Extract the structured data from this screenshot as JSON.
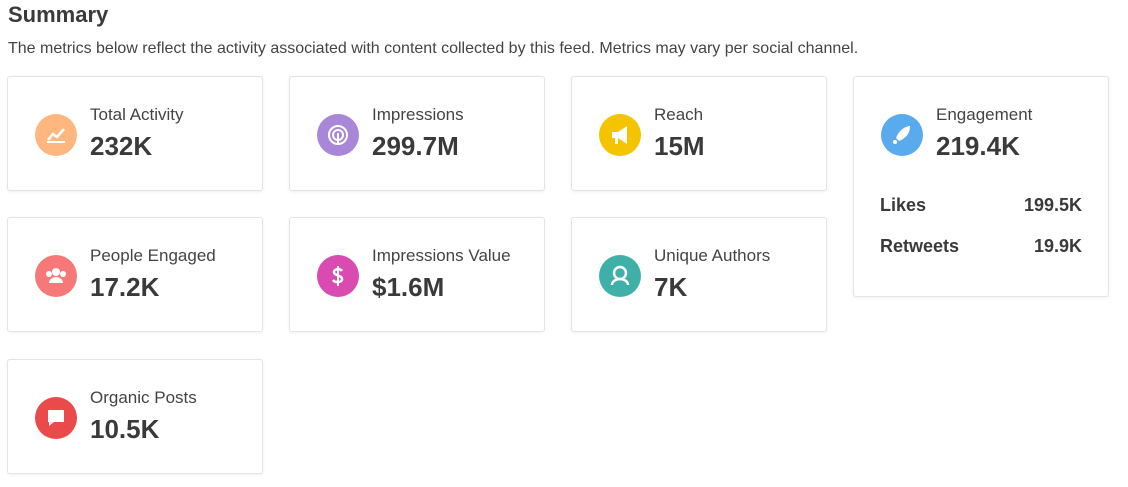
{
  "header": {
    "title": "Summary",
    "subtitle": "The metrics below reflect the activity associated with content collected by this feed. Metrics may vary per social channel."
  },
  "cards": [
    {
      "label": "Total Activity",
      "value": "232K"
    },
    {
      "label": "Impressions",
      "value": "299.7M"
    },
    {
      "label": "Reach",
      "value": "15M"
    },
    {
      "label": "Engagement",
      "value": "219.4K",
      "breakdown": [
        {
          "label": "Likes",
          "value": "199.5K"
        },
        {
          "label": "Retweets",
          "value": "19.9K"
        }
      ]
    },
    {
      "label": "People Engaged",
      "value": "17.2K"
    },
    {
      "label": "Impressions Value",
      "value": "$1.6M"
    },
    {
      "label": "Unique Authors",
      "value": "7K"
    },
    {
      "label": "Organic Posts",
      "value": "10.5K"
    }
  ]
}
